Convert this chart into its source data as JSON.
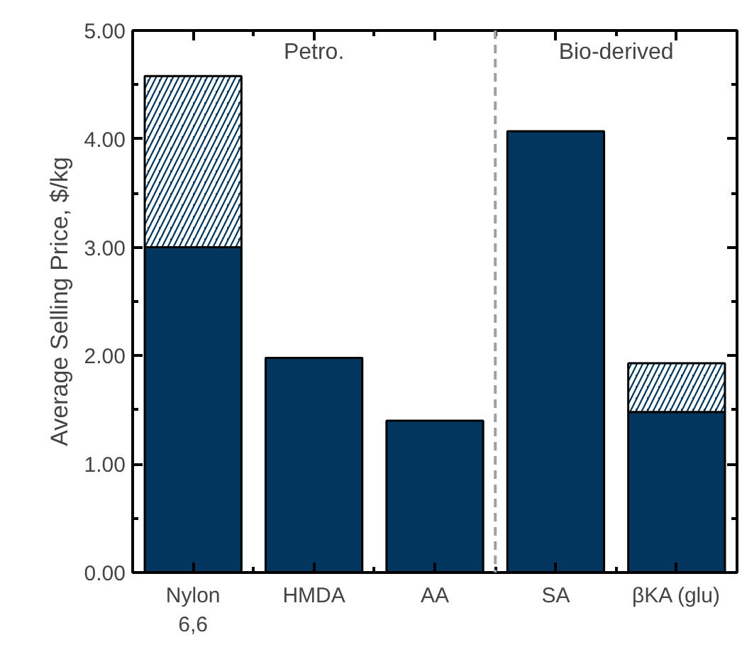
{
  "chart_data": {
    "type": "bar",
    "stacked": true,
    "ylabel": "Average Selling Price, $/kg",
    "categories": [
      "Nylon\n6,6",
      "HMDA",
      "AA",
      "SA",
      "βKA (glu)"
    ],
    "series": [
      {
        "color": "#02365f",
        "values": [
          3.0,
          1.98,
          1.4,
          4.07,
          1.48
        ]
      },
      {
        "color": "#02365f",
        "values": [
          1.58,
          null,
          null,
          null,
          0.45
        ]
      }
    ],
    "ylim": [
      0,
      5
    ],
    "yticks": [
      {
        "value": 0,
        "label": "0.00"
      },
      {
        "value": 0.5,
        "label": null
      },
      {
        "value": 1,
        "label": "1.00"
      },
      {
        "value": 1.5,
        "label": null
      },
      {
        "value": 2,
        "label": "2.00"
      },
      {
        "value": 2.5,
        "label": null
      },
      {
        "value": 3,
        "label": "3.00"
      },
      {
        "value": 3.5,
        "label": null
      },
      {
        "value": 4,
        "label": "4.00"
      },
      {
        "value": 4.5,
        "label": null
      },
      {
        "value": 5,
        "label": "5.00"
      }
    ],
    "annotations": [
      "Petro.",
      "Bio-derived"
    ]
  }
}
